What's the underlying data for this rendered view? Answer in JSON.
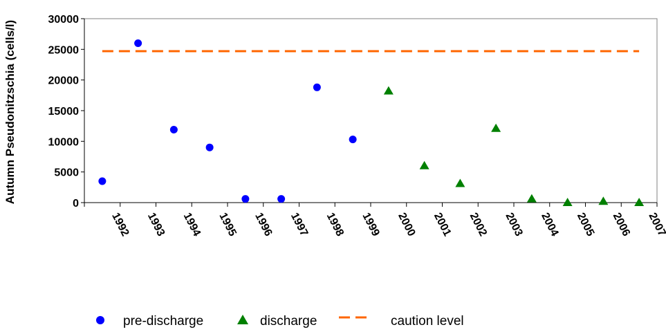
{
  "chart_data": {
    "type": "scatter",
    "ylabel": "Autumn Pseudonitzschia (cells/l)",
    "xlabel": "",
    "categories": [
      "1992",
      "1993",
      "1994",
      "1995",
      "1996",
      "1997",
      "1998",
      "1999",
      "2000",
      "2001",
      "2002",
      "2003",
      "2004",
      "2005",
      "2006",
      "2007"
    ],
    "ylim": [
      0,
      30000
    ],
    "yticks": [
      "0",
      "5000",
      "10000",
      "15000",
      "20000",
      "25000",
      "30000"
    ],
    "grid": false,
    "legend_position": "bottom",
    "series": [
      {
        "name": "pre-discharge",
        "marker": "circle",
        "color": "#0000FF",
        "points": [
          {
            "x": "1992",
            "y": 3500
          },
          {
            "x": "1993",
            "y": 26000
          },
          {
            "x": "1994",
            "y": 11900
          },
          {
            "x": "1995",
            "y": 9000
          },
          {
            "x": "1996",
            "y": 600
          },
          {
            "x": "1997",
            "y": 600
          },
          {
            "x": "1998",
            "y": 18800
          },
          {
            "x": "1999",
            "y": 10300
          }
        ]
      },
      {
        "name": "discharge",
        "marker": "triangle",
        "color": "#008000",
        "points": [
          {
            "x": "2000",
            "y": 18200
          },
          {
            "x": "2001",
            "y": 6000
          },
          {
            "x": "2002",
            "y": 3100
          },
          {
            "x": "2003",
            "y": 12100
          },
          {
            "x": "2004",
            "y": 600
          },
          {
            "x": "2005",
            "y": 0
          },
          {
            "x": "2006",
            "y": 200
          },
          {
            "x": "2007",
            "y": 0
          }
        ]
      },
      {
        "name": "caution level",
        "marker": "dashed-line",
        "color": "#FF6600",
        "value": 24700
      }
    ]
  }
}
